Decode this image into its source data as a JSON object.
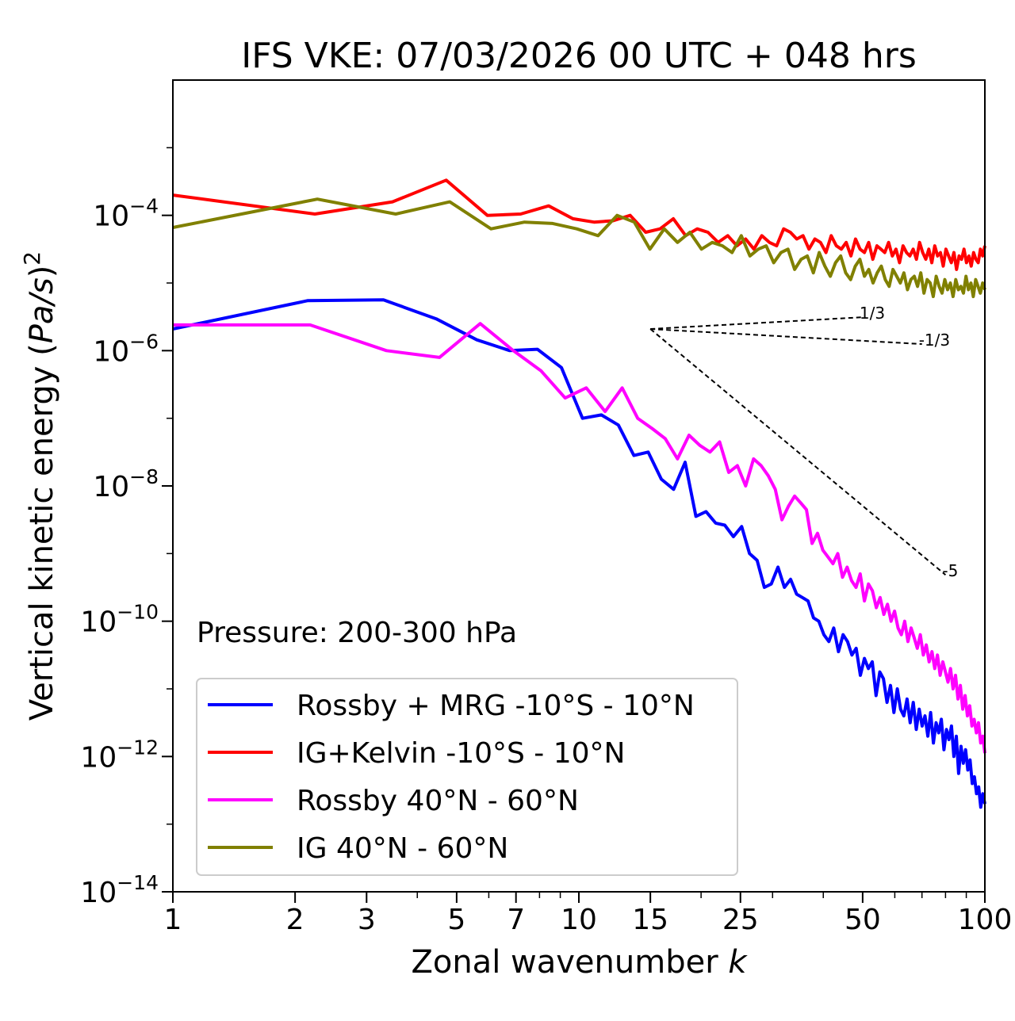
{
  "chart_data": {
    "type": "line",
    "title": "IFS VKE: 07/03/2026 00 UTC + 048 hrs",
    "xlabel_text": "Zonal wavenumber ",
    "xlabel_var": "k",
    "ylabel_text": "Vertical kinetic energy (",
    "ylabel_var": "Pa/s",
    "ylabel_close": ")",
    "ylabel_exp": "2",
    "xscale": "log",
    "yscale": "log",
    "xlim": [
      1,
      100
    ],
    "ylim": [
      1e-14,
      0.01
    ],
    "x_ticks": [
      {
        "value": 1,
        "label": "1"
      },
      {
        "value": 2,
        "label": "2"
      },
      {
        "value": 3,
        "label": "3"
      },
      {
        "value": 5,
        "label": "5"
      },
      {
        "value": 7,
        "label": "7"
      },
      {
        "value": 10,
        "label": "10"
      },
      {
        "value": 15,
        "label": "15"
      },
      {
        "value": 25,
        "label": "25"
      },
      {
        "value": 50,
        "label": "50"
      },
      {
        "value": 100,
        "label": "100"
      }
    ],
    "y_ticks": [
      {
        "exp": -4,
        "base": "10",
        "sup": "−4"
      },
      {
        "exp": -6,
        "base": "10",
        "sup": "−6"
      },
      {
        "exp": -8,
        "base": "10",
        "sup": "−8"
      },
      {
        "exp": -10,
        "base": "10",
        "sup": "−10"
      },
      {
        "exp": -12,
        "base": "10",
        "sup": "−12"
      },
      {
        "exp": -14,
        "base": "10",
        "sup": "−14"
      }
    ],
    "annotation": "Pressure: 200-300 hPa",
    "legend_position": "lower-left",
    "series": [
      {
        "name": "Rossby + MRG -10°S - 10°N",
        "color": "#0000ff",
        "log10_values": [
          -5.68,
          -5.26,
          -5.25,
          -5.53,
          -5.84,
          -6.0,
          -5.98,
          -6.25,
          -7.0,
          -6.95,
          -7.1,
          -7.55,
          -7.5,
          -7.9,
          -8.05,
          -7.65,
          -8.45,
          -8.38,
          -8.55,
          -8.58,
          -8.75,
          -8.6,
          -9.0,
          -9.1,
          -9.5,
          -9.45,
          -9.2,
          -9.5,
          -9.38,
          -9.6,
          -9.65,
          -9.7,
          -9.95,
          -10.0,
          -10.2,
          -10.3,
          -10.1,
          -10.45,
          -10.2,
          -10.3,
          -10.5,
          -10.4,
          -10.8,
          -10.55,
          -10.7,
          -10.6,
          -11.1,
          -10.75,
          -10.85,
          -11.2,
          -10.95,
          -11.35,
          -11.0,
          -11.3,
          -11.4,
          -11.15,
          -11.5,
          -11.2,
          -11.6,
          -11.3,
          -11.55,
          -11.4,
          -11.7,
          -11.35,
          -11.8,
          -11.5,
          -11.65,
          -11.45,
          -11.9,
          -11.6,
          -11.75,
          -11.55,
          -12.0,
          -11.7,
          -12.25,
          -11.85,
          -12.1,
          -11.9,
          -12.2,
          -12.05,
          -12.4,
          -12.3,
          -12.55,
          -12.45,
          -12.75,
          -12.55,
          -12.7
        ]
      },
      {
        "name": "IG+Kelvin -10°S - 10°N",
        "color": "#ff0000",
        "log10_values": [
          -3.7,
          -3.98,
          -3.8,
          -3.48,
          -4.0,
          -3.98,
          -3.86,
          -4.05,
          -4.1,
          -4.08,
          -4.0,
          -4.25,
          -4.2,
          -4.05,
          -4.3,
          -4.2,
          -4.25,
          -4.4,
          -4.3,
          -4.45,
          -4.35,
          -4.5,
          -4.3,
          -4.4,
          -4.45,
          -4.2,
          -4.25,
          -4.35,
          -4.3,
          -4.5,
          -4.35,
          -4.4,
          -4.55,
          -4.3,
          -4.45,
          -4.5,
          -4.4,
          -4.6,
          -4.35,
          -4.5,
          -4.55,
          -4.4,
          -4.65,
          -4.45,
          -4.5,
          -4.55,
          -4.4,
          -4.6,
          -4.5,
          -4.7,
          -4.45,
          -4.55,
          -4.6,
          -4.5,
          -4.65,
          -4.4,
          -4.55,
          -4.65,
          -4.5,
          -4.7,
          -4.45,
          -4.6,
          -4.55,
          -4.75,
          -4.5,
          -4.6,
          -4.7,
          -4.55,
          -4.8,
          -4.6,
          -4.65,
          -4.5,
          -4.7,
          -4.6,
          -4.75,
          -4.55,
          -4.65,
          -4.7,
          -4.5,
          -4.6,
          -4.45
        ]
      },
      {
        "name": "Rossby 40°N - 60°N",
        "color": "#ff00ff",
        "log10_values": [
          -5.62,
          -5.62,
          -6.0,
          -6.1,
          -5.6,
          -6.0,
          -6.3,
          -6.7,
          -6.55,
          -6.9,
          -6.55,
          -7.0,
          -7.15,
          -7.3,
          -7.6,
          -7.25,
          -7.4,
          -7.5,
          -7.35,
          -7.8,
          -7.7,
          -8.0,
          -7.6,
          -7.7,
          -7.85,
          -8.05,
          -8.5,
          -8.3,
          -8.15,
          -8.25,
          -8.35,
          -8.85,
          -8.7,
          -8.95,
          -9.05,
          -9.15,
          -9.0,
          -9.35,
          -9.2,
          -9.4,
          -9.5,
          -9.3,
          -9.7,
          -9.45,
          -9.55,
          -9.8,
          -9.65,
          -9.9,
          -9.75,
          -10.0,
          -9.85,
          -10.1,
          -10.2,
          -10.0,
          -10.3,
          -10.1,
          -10.25,
          -10.4,
          -10.2,
          -10.5,
          -10.35,
          -10.6,
          -10.45,
          -10.7,
          -10.5,
          -10.8,
          -10.6,
          -10.75,
          -10.9,
          -10.7,
          -11.0,
          -10.8,
          -11.15,
          -10.95,
          -11.3,
          -11.1,
          -11.4,
          -11.25,
          -11.55,
          -11.45,
          -11.65,
          -11.5,
          -11.8,
          -11.7,
          -11.95
        ]
      },
      {
        "name": "IG 40°N - 60°N",
        "color": "#808000",
        "log10_values": [
          -4.18,
          -3.76,
          -3.98,
          -3.8,
          -4.2,
          -4.1,
          -4.12,
          -4.2,
          -4.3,
          -4.0,
          -4.1,
          -4.5,
          -4.2,
          -4.4,
          -4.25,
          -4.5,
          -4.4,
          -4.45,
          -4.55,
          -4.3,
          -4.6,
          -4.5,
          -4.45,
          -4.7,
          -4.55,
          -4.5,
          -4.8,
          -4.65,
          -4.6,
          -4.85,
          -4.55,
          -4.75,
          -4.9,
          -4.7,
          -4.6,
          -4.85,
          -4.95,
          -4.75,
          -4.65,
          -4.9,
          -4.8,
          -5.0,
          -4.85,
          -4.75,
          -4.95,
          -5.05,
          -4.8,
          -4.9,
          -5.0,
          -4.85,
          -5.1,
          -4.95,
          -4.9,
          -5.05,
          -4.85,
          -5.15,
          -4.95,
          -5.0,
          -5.2,
          -4.9,
          -5.05,
          -5.15,
          -4.95,
          -5.1,
          -5.0,
          -5.2,
          -4.95,
          -5.1,
          -5.05,
          -5.15,
          -4.9,
          -5.1,
          -5.0,
          -5.2,
          -4.95,
          -5.05,
          -5.15,
          -5.0,
          -5.1
        ]
      }
    ],
    "reference_lines": [
      {
        "slope_label": "1/3",
        "x0": 15,
        "x1": 50,
        "log10_y0": -5.68
      },
      {
        "slope_label": "-1/3",
        "x0": 15,
        "x1": 70,
        "log10_y0": -5.68
      },
      {
        "slope_label": "-5",
        "x0": 15,
        "x1": 80,
        "log10_y0": -5.68
      }
    ]
  }
}
